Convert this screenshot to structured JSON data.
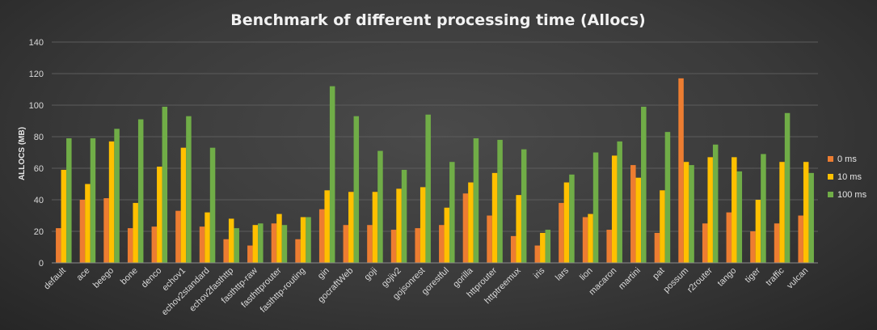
{
  "chart_data": {
    "type": "bar",
    "title": "Benchmark  of  different  processing  time  (Allocs)",
    "ylabel": "ALLOCS (MB)",
    "xlabel": "",
    "ylim": [
      0,
      140
    ],
    "yticks": [
      0,
      20,
      40,
      60,
      80,
      100,
      120,
      140
    ],
    "grid": true,
    "legend_position": "right",
    "categories": [
      "default",
      "ace",
      "beego",
      "bone",
      "denco",
      "echov1",
      "echov2standard",
      "echov2fasthttp",
      "fasthttp-raw",
      "fasthttprouter",
      "fasthttp-routing",
      "gin",
      "gocraftWeb",
      "goji",
      "gojiv2",
      "gojsonrest",
      "gorestful",
      "gorilla",
      "httprouter",
      "httptreemux",
      "iris",
      "lars",
      "lion",
      "macaron",
      "martini",
      "pat",
      "possum",
      "r2router",
      "tango",
      "tiger",
      "traffic",
      "vulcan"
    ],
    "series": [
      {
        "name": "0 ms",
        "color": "#ed7d31",
        "values": [
          22,
          40,
          41,
          22,
          23,
          33,
          23,
          15,
          11,
          25,
          15,
          34,
          24,
          24,
          21,
          22,
          24,
          44,
          30,
          17,
          11,
          38,
          29,
          21,
          62,
          19,
          117,
          25,
          32,
          20,
          25,
          30
        ]
      },
      {
        "name": "10 ms",
        "color": "#ffc000",
        "values": [
          59,
          50,
          77,
          38,
          61,
          73,
          32,
          28,
          24,
          31,
          29,
          46,
          45,
          45,
          47,
          48,
          35,
          51,
          57,
          43,
          19,
          51,
          31,
          68,
          54,
          46,
          64,
          67,
          67,
          40,
          64,
          64
        ]
      },
      {
        "name": "100 ms",
        "color": "#70ad47",
        "values": [
          79,
          79,
          85,
          91,
          99,
          93,
          73,
          22,
          25,
          24,
          29,
          112,
          93,
          71,
          59,
          94,
          64,
          79,
          78,
          72,
          21,
          56,
          70,
          77,
          99,
          83,
          62,
          75,
          58,
          69,
          95,
          57
        ]
      }
    ]
  }
}
